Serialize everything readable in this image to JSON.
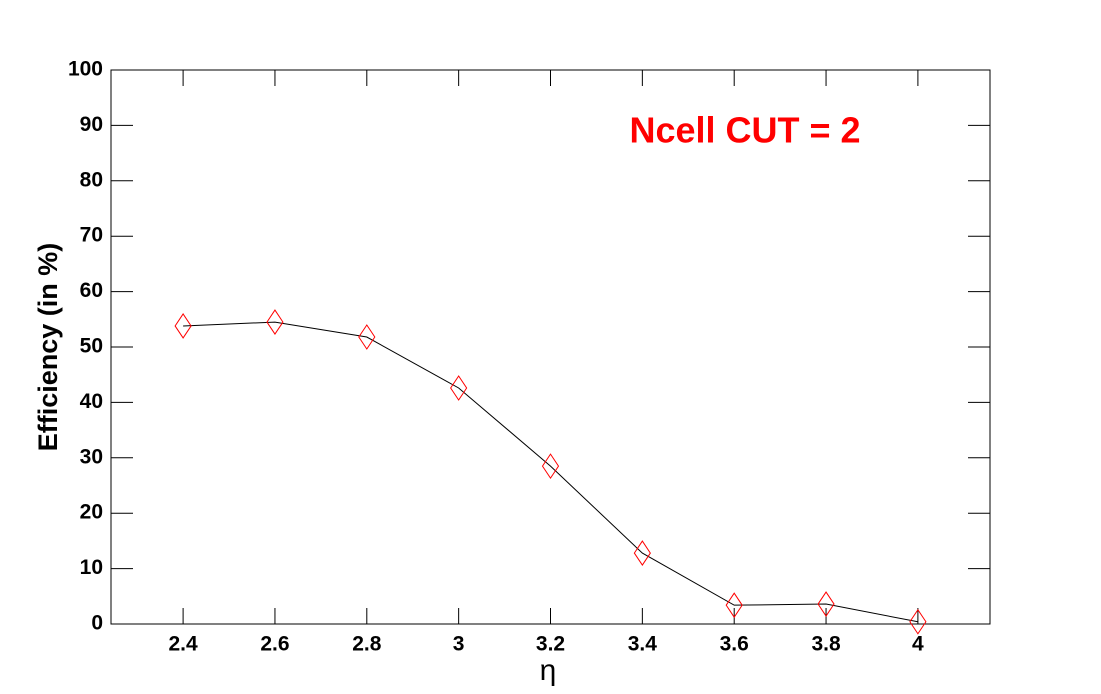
{
  "chart_data": {
    "type": "line",
    "annotation": "Ncell CUT = 2",
    "annotation_color": "#ff0000",
    "x_label": "η",
    "y_label": "Efficiency (in %)",
    "x": [
      2.4,
      2.6,
      2.8,
      3.0,
      3.2,
      3.4,
      3.6,
      3.8,
      4.0
    ],
    "series": [
      {
        "name": "Efficiency",
        "color": "#000000",
        "marker_color": "#ff0000",
        "values": [
          53.8,
          54.5,
          51.8,
          42.6,
          28.5,
          12.8,
          3.4,
          3.6,
          0.4
        ]
      }
    ],
    "xlim": [
      2.243,
      4.157
    ],
    "xticks": [
      2.4,
      2.6,
      2.8,
      3,
      3.2,
      3.4,
      3.6,
      3.8,
      4
    ],
    "ylim": [
      0,
      100
    ],
    "yticks": [
      0,
      10,
      20,
      30,
      40,
      50,
      60,
      70,
      80,
      90,
      100
    ],
    "grid": false
  }
}
